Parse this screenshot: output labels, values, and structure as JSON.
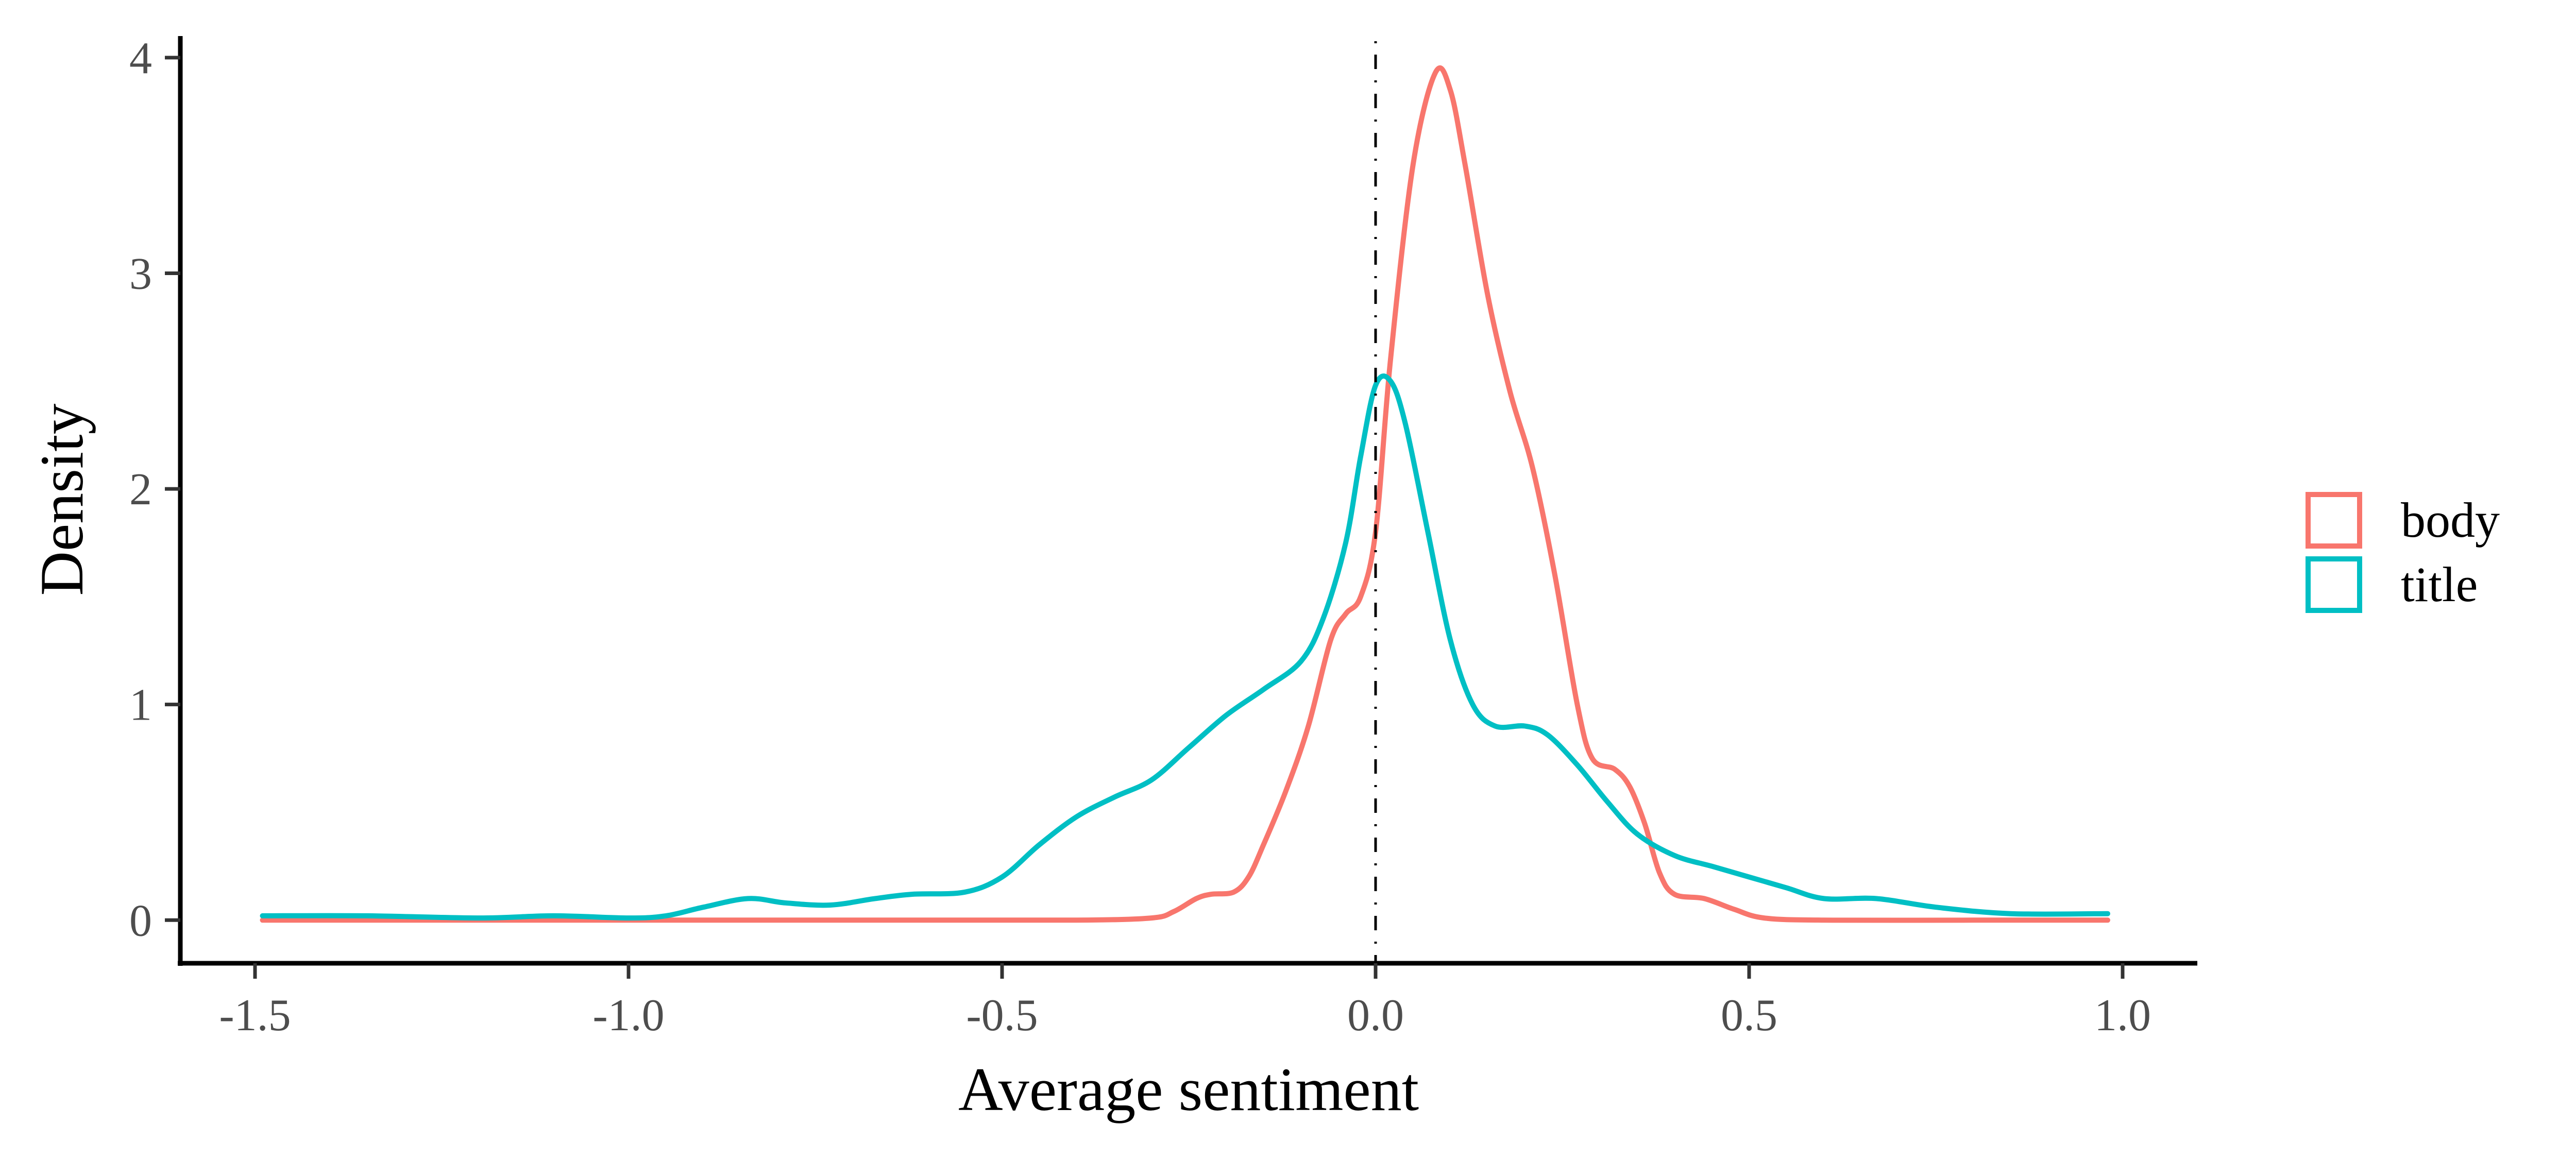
{
  "chart_data": {
    "type": "line",
    "title": "",
    "xlabel": "Average sentiment",
    "ylabel": "Density",
    "xlim": [
      -1.6,
      1.1
    ],
    "ylim": [
      -0.2,
      4.1
    ],
    "x_ticks": [
      -1.5,
      -1.0,
      -0.5,
      0.0,
      0.5,
      1.0
    ],
    "x_tick_labels": [
      "-1.5",
      "-1.0",
      "-0.5",
      "0.0",
      "0.5",
      "1.0"
    ],
    "y_ticks": [
      0,
      1,
      2,
      3,
      4
    ],
    "y_tick_labels": [
      "0",
      "1",
      "2",
      "3",
      "4"
    ],
    "reference_line": {
      "x": 0.0,
      "style": "dot-dash",
      "color": "#000000"
    },
    "grid": false,
    "legend_position": "right",
    "series": [
      {
        "name": "body",
        "color": "#F8766D",
        "points": [
          [
            -1.49,
            0.0
          ],
          [
            -1.2,
            0.0
          ],
          [
            -0.9,
            0.0
          ],
          [
            -0.6,
            0.0
          ],
          [
            -0.4,
            0.0
          ],
          [
            -0.3,
            0.01
          ],
          [
            -0.27,
            0.04
          ],
          [
            -0.24,
            0.1
          ],
          [
            -0.22,
            0.12
          ],
          [
            -0.19,
            0.13
          ],
          [
            -0.17,
            0.2
          ],
          [
            -0.15,
            0.35
          ],
          [
            -0.12,
            0.6
          ],
          [
            -0.09,
            0.9
          ],
          [
            -0.06,
            1.3
          ],
          [
            -0.04,
            1.42
          ],
          [
            -0.02,
            1.5
          ],
          [
            0.0,
            1.8
          ],
          [
            0.02,
            2.6
          ],
          [
            0.05,
            3.5
          ],
          [
            0.08,
            3.93
          ],
          [
            0.1,
            3.85
          ],
          [
            0.12,
            3.5
          ],
          [
            0.15,
            2.9
          ],
          [
            0.18,
            2.45
          ],
          [
            0.21,
            2.1
          ],
          [
            0.24,
            1.6
          ],
          [
            0.27,
            1.0
          ],
          [
            0.29,
            0.75
          ],
          [
            0.32,
            0.7
          ],
          [
            0.34,
            0.62
          ],
          [
            0.36,
            0.45
          ],
          [
            0.38,
            0.22
          ],
          [
            0.4,
            0.12
          ],
          [
            0.44,
            0.1
          ],
          [
            0.48,
            0.05
          ],
          [
            0.52,
            0.01
          ],
          [
            0.6,
            0.0
          ],
          [
            0.8,
            0.0
          ],
          [
            0.98,
            0.0
          ]
        ]
      },
      {
        "name": "title",
        "color": "#00BFC4",
        "points": [
          [
            -1.49,
            0.02
          ],
          [
            -1.35,
            0.02
          ],
          [
            -1.2,
            0.01
          ],
          [
            -1.1,
            0.02
          ],
          [
            -1.0,
            0.01
          ],
          [
            -0.95,
            0.02
          ],
          [
            -0.9,
            0.06
          ],
          [
            -0.84,
            0.1
          ],
          [
            -0.79,
            0.08
          ],
          [
            -0.73,
            0.07
          ],
          [
            -0.67,
            0.1
          ],
          [
            -0.62,
            0.12
          ],
          [
            -0.55,
            0.13
          ],
          [
            -0.5,
            0.2
          ],
          [
            -0.45,
            0.35
          ],
          [
            -0.4,
            0.48
          ],
          [
            -0.35,
            0.57
          ],
          [
            -0.3,
            0.65
          ],
          [
            -0.25,
            0.8
          ],
          [
            -0.2,
            0.95
          ],
          [
            -0.15,
            1.07
          ],
          [
            -0.1,
            1.2
          ],
          [
            -0.07,
            1.4
          ],
          [
            -0.04,
            1.75
          ],
          [
            -0.02,
            2.15
          ],
          [
            0.0,
            2.48
          ],
          [
            0.02,
            2.5
          ],
          [
            0.04,
            2.3
          ],
          [
            0.07,
            1.8
          ],
          [
            0.1,
            1.3
          ],
          [
            0.13,
            1.0
          ],
          [
            0.16,
            0.9
          ],
          [
            0.2,
            0.9
          ],
          [
            0.23,
            0.86
          ],
          [
            0.27,
            0.72
          ],
          [
            0.31,
            0.55
          ],
          [
            0.35,
            0.4
          ],
          [
            0.4,
            0.3
          ],
          [
            0.45,
            0.25
          ],
          [
            0.5,
            0.2
          ],
          [
            0.55,
            0.15
          ],
          [
            0.6,
            0.1
          ],
          [
            0.67,
            0.1
          ],
          [
            0.75,
            0.06
          ],
          [
            0.85,
            0.03
          ],
          [
            0.98,
            0.03
          ]
        ]
      }
    ]
  }
}
